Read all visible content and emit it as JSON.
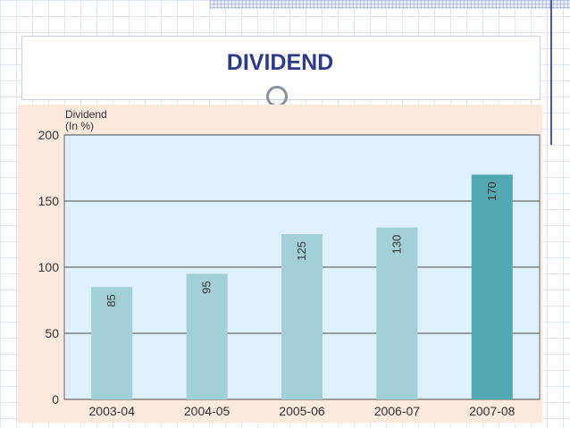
{
  "slide": {
    "title": "DIVIDEND"
  },
  "chart_data": {
    "type": "bar",
    "title": "",
    "ylabel_lines": [
      "Dividend",
      "(In %)"
    ],
    "xlabel": "",
    "categories": [
      "2003-04",
      "2004-05",
      "2005-06",
      "2006-07",
      "2007-08"
    ],
    "values": [
      85,
      95,
      125,
      130,
      170
    ],
    "ylim": [
      0,
      200
    ],
    "yticks": [
      0,
      50,
      100,
      150,
      200
    ],
    "grid": true,
    "legend": "none",
    "colors": {
      "bar": "#a3cfd6",
      "highlight_bar": "#52a9b2",
      "plot_bg": "#def0fb",
      "frame_bg": "#fbe9de",
      "grid": "#4a4a4a"
    },
    "highlight_index": 4
  }
}
